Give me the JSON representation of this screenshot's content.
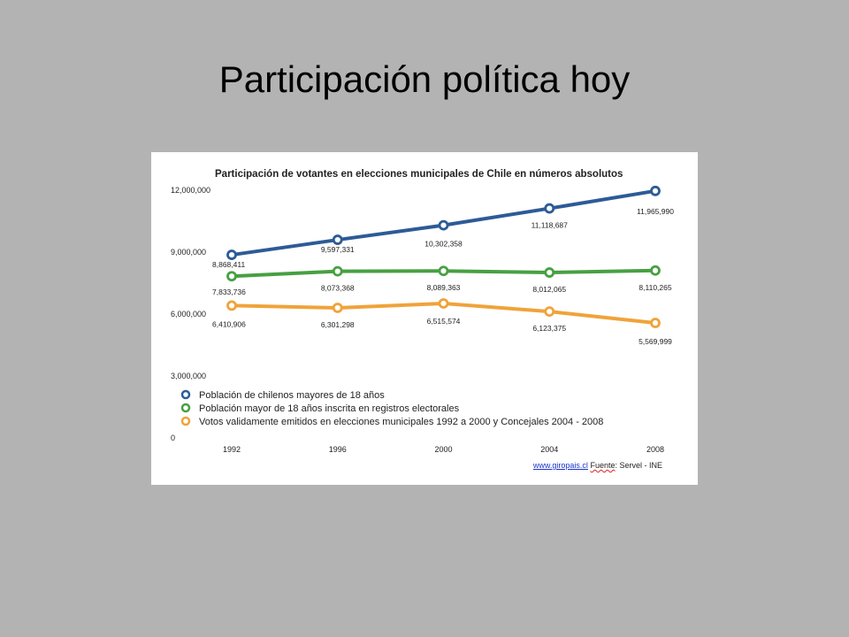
{
  "slide": {
    "title": "Participación política hoy"
  },
  "footer": {
    "link": "www.giropais.cl",
    "source_label": "Fuente",
    "source_rest": ": Servel - INE"
  },
  "colors": {
    "background": "#b3b3b3",
    "blue": "#2d5b96",
    "green": "#47a042",
    "orange": "#f0a33a"
  },
  "chart_data": {
    "type": "line",
    "title": "Participación de votantes en elecciones municipales de Chile en números absolutos",
    "xlabel": "",
    "ylabel": "",
    "x": [
      "1992",
      "1996",
      "2000",
      "2004",
      "2008"
    ],
    "ylim": [
      0,
      12000000
    ],
    "yticks": [
      0,
      3000000,
      6000000,
      9000000,
      12000000
    ],
    "ytick_labels": [
      "0",
      "3,000,000",
      "6,000,000",
      "9,000,000",
      "12,000,000"
    ],
    "grid": false,
    "legend_position": "bottom-left",
    "series": [
      {
        "name": "Población de chilenos mayores de 18 años",
        "color": "#2d5b96",
        "values": [
          8868411,
          9597331,
          10302358,
          11118687,
          11965990
        ],
        "labels": [
          "8,868,411",
          "9,597,331",
          "10,302,358",
          "11,118,687",
          "11,965,990"
        ]
      },
      {
        "name": "Población mayor de 18 años inscrita en registros electorales",
        "color": "#47a042",
        "values": [
          7833736,
          8073368,
          8089363,
          8012065,
          8110265
        ],
        "labels": [
          "7,833,736",
          "8,073,368",
          "8,089,363",
          "8,012,065",
          "8,110,265"
        ]
      },
      {
        "name": "Votos validamente emitidos en elecciones municipales 1992 a 2000 y Concejales 2004 - 2008",
        "color": "#f0a33a",
        "values": [
          6410906,
          6301298,
          6515574,
          6123375,
          5569999
        ],
        "labels": [
          "6,410,906",
          "6,301,298",
          "6,515,574",
          "6,123,375",
          "5,569,999"
        ]
      }
    ]
  }
}
